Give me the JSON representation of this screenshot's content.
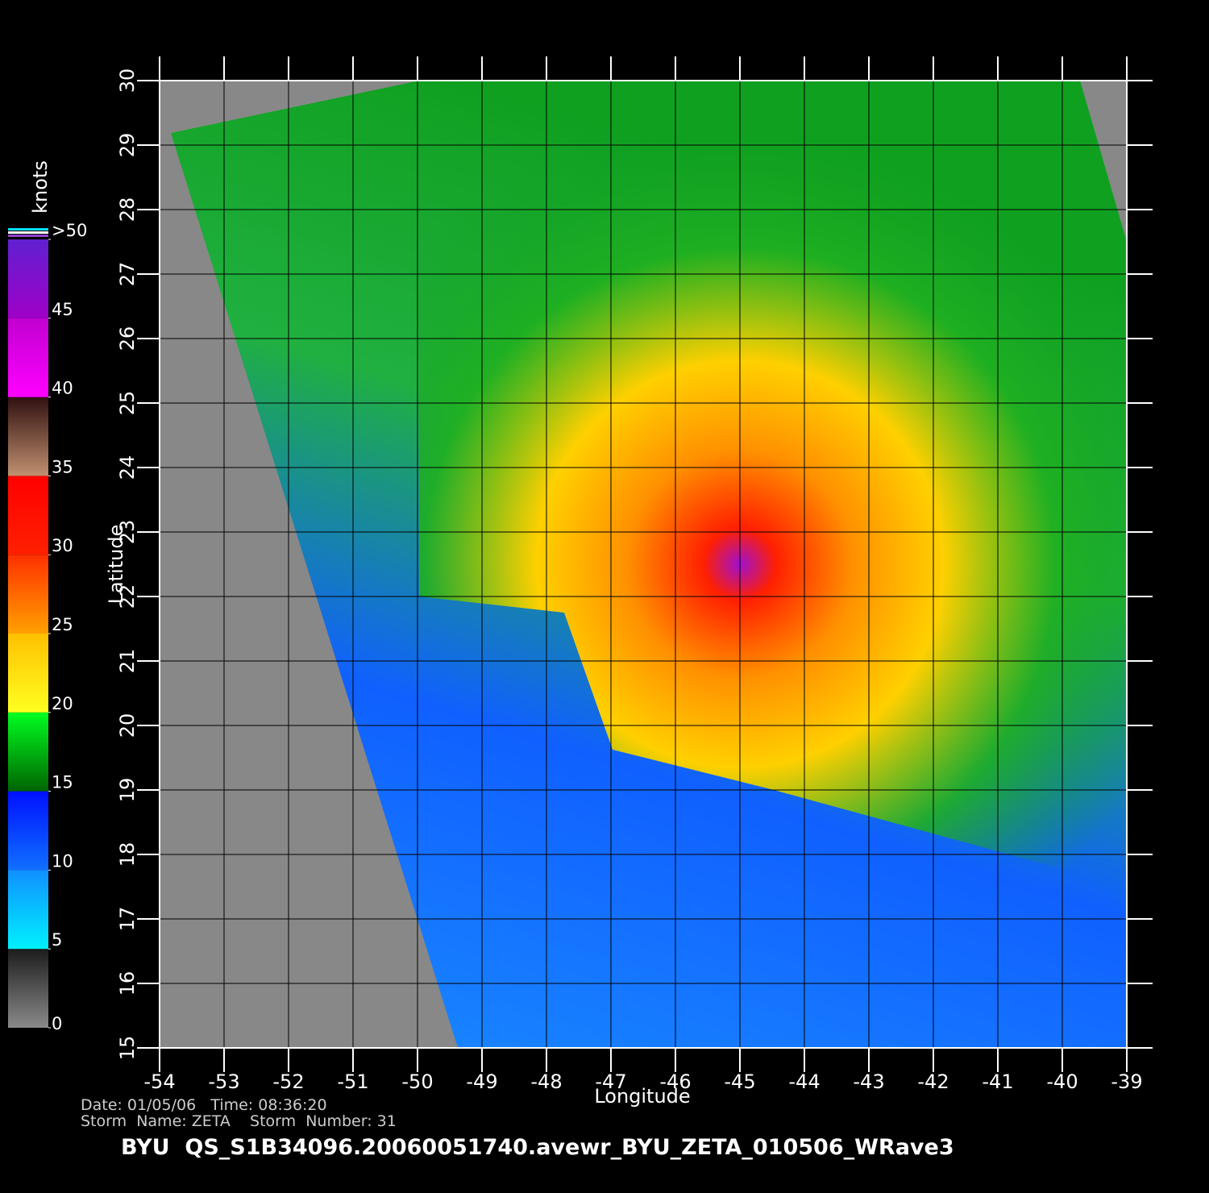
{
  "chart_data": {
    "type": "map",
    "xlabel": "Longitude",
    "ylabel": "Latitude",
    "xlim": [
      -54,
      -39
    ],
    "ylim": [
      15,
      30
    ],
    "xticks": [
      -54,
      -53,
      -52,
      -51,
      -50,
      -49,
      -48,
      -47,
      -46,
      -45,
      -44,
      -43,
      -42,
      -41,
      -40,
      -39
    ],
    "yticks": [
      15,
      16,
      17,
      18,
      19,
      20,
      21,
      22,
      23,
      24,
      25,
      26,
      27,
      28,
      29,
      30
    ],
    "grid": true,
    "colorbar": {
      "label": "knots",
      "lim": [
        0,
        50
      ],
      "ticks": [
        0,
        5,
        10,
        15,
        20,
        25,
        30,
        35,
        40,
        45,
        {
          "value": 50,
          "label": ">50"
        }
      ],
      "colors": [
        [
          "#8a8a8a",
          "#1c1c1c"
        ],
        [
          "#00f0ff",
          "#1090ff"
        ],
        [
          "#1070ff",
          "#0010ff"
        ],
        [
          "#006400",
          "#00ff20"
        ],
        [
          "#ffff20",
          "#ffc000"
        ],
        [
          "#ffa000",
          "#ff3000"
        ],
        [
          "#ff2000",
          "#ff0000"
        ],
        [
          "#c09070",
          "#301010"
        ],
        [
          "#ff00ff",
          "#c000d0"
        ],
        [
          "#a000c8",
          "#6020d0"
        ]
      ]
    },
    "info": [
      "Date: 01/05/06   Time: 08:36:20",
      "Storm  Name: ZETA    Storm  Number: 31"
    ],
    "footer": "BYU  QS_S1B34096.20060051740.avewr_BYU_ZETA_010506_WRave3"
  }
}
